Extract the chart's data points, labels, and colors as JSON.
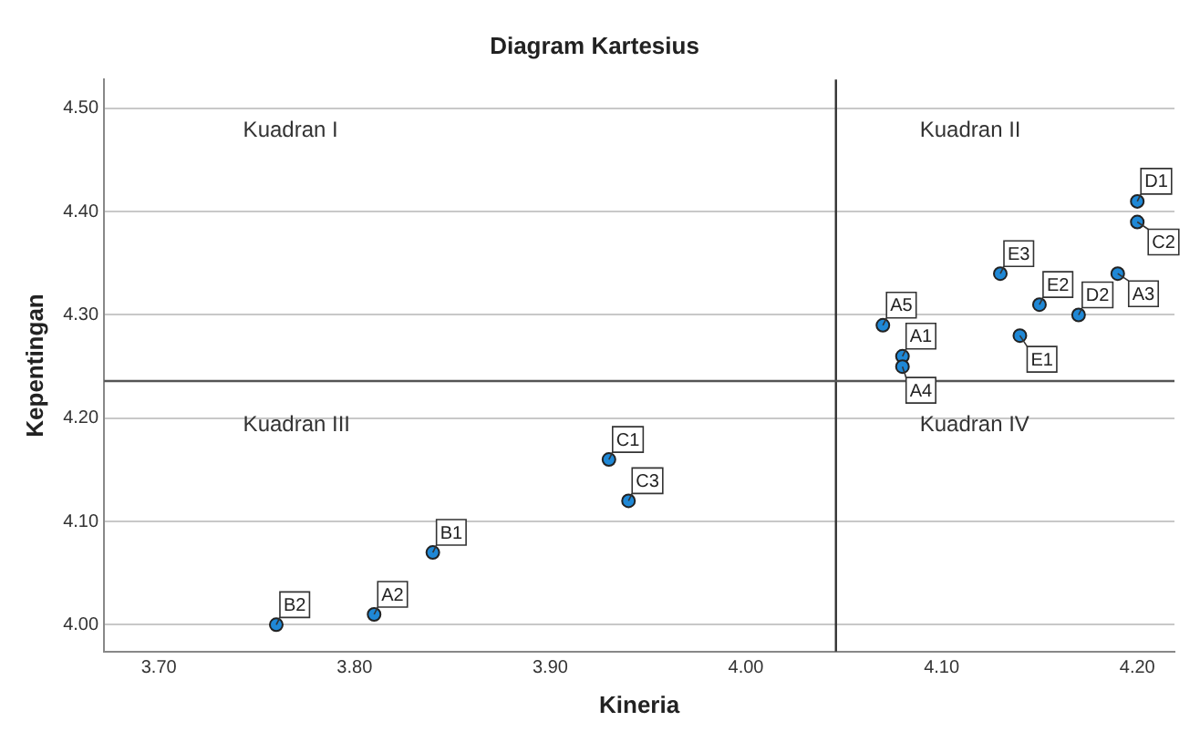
{
  "chart_data": {
    "type": "scatter",
    "title": "Diagram Kartesius",
    "xlabel": "Kineria",
    "ylabel": "Kepentingan",
    "x": [
      4.08,
      3.81,
      4.19,
      4.08,
      4.07,
      3.84,
      3.76,
      3.93,
      4.2,
      3.94,
      4.2,
      4.17,
      4.14,
      4.15,
      4.13
    ],
    "series": [
      {
        "color": "#1f88d6",
        "values": [
          4.26,
          4.01,
          4.34,
          4.25,
          4.29,
          4.07,
          4.0,
          4.16,
          4.39,
          4.12,
          4.41,
          4.3,
          4.28,
          4.31,
          4.34
        ],
        "value_labels": [
          "A1",
          "A2",
          "A3",
          "A4",
          "A5",
          "B1",
          "B2",
          "C1",
          "C2",
          "C3",
          "D1",
          "D2",
          "E1",
          "E2",
          "E3"
        ]
      }
    ],
    "xlim": [
      3.672,
      4.219
    ],
    "ylim": [
      3.974,
      4.528
    ],
    "xticks": [
      {
        "value": 3.7,
        "label": "3.70"
      },
      {
        "value": 3.8,
        "label": "3.80"
      },
      {
        "value": 3.9,
        "label": "3.90"
      },
      {
        "value": 4.0,
        "label": "4.00"
      },
      {
        "value": 4.1,
        "label": "4.10"
      },
      {
        "value": 4.2,
        "label": "4.20"
      }
    ],
    "yticks": [
      {
        "value": 4.0,
        "label": "4.00"
      },
      {
        "value": 4.1,
        "label": "4.10"
      },
      {
        "value": 4.2,
        "label": "4.20"
      },
      {
        "value": 4.3,
        "label": "4.30"
      },
      {
        "value": 4.4,
        "label": "4.40"
      },
      {
        "value": 4.5,
        "label": "4.50"
      }
    ],
    "ref_lines": [
      {
        "axis": "x",
        "value": 4.046,
        "color": "#333333"
      },
      {
        "axis": "y",
        "value": 4.236,
        "color": "#555555"
      }
    ],
    "annotations": [
      "Kuadran I",
      "Kuadran II",
      "Kuadran III",
      "Kuadran IV"
    ],
    "grid": "y",
    "legend": false,
    "marker": "circle"
  }
}
